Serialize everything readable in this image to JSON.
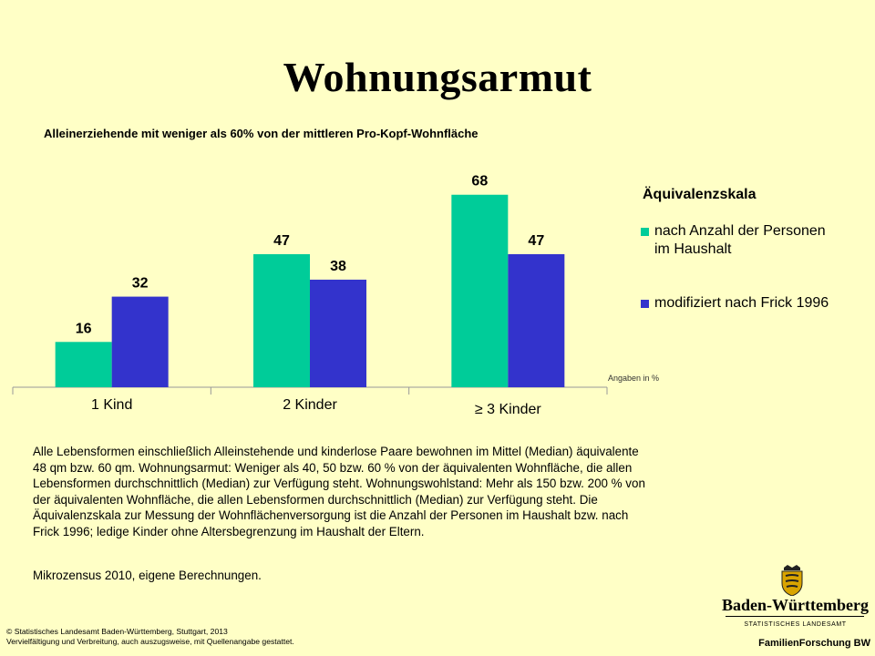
{
  "title": "Wohnungsarmut",
  "subtitle": "Alleinerziehende mit weniger als 60% von der mittleren Pro-Kopf-Wohnfläche",
  "chart_data": {
    "type": "bar",
    "categories": [
      "1 Kind",
      "2 Kinder",
      "≥ 3 Kinder"
    ],
    "series": [
      {
        "name": "nach Anzahl der Personen im Haushalt",
        "values": [
          16,
          47,
          68
        ],
        "color": "#00cc99"
      },
      {
        "name": "modifiziert nach Frick 1996",
        "values": [
          32,
          38,
          47
        ],
        "color": "#3333cc"
      }
    ],
    "ylim": [
      0,
      75
    ],
    "grid": false,
    "legend_position": "right",
    "legend_title": "Äquivalenzskala",
    "unit_note": "Angaben in %"
  },
  "legend": {
    "title": "Äquivalenzskala",
    "item1_line1": "nach Anzahl der Personen",
    "item1_line2": "im Haushalt",
    "item2": "modifiziert nach Frick 1996"
  },
  "unit_note": "Angaben in %",
  "body_text_lines": [
    "Alle Lebensformen einschließlich Alleinstehende und kinderlose Paare bewohnen im Mittel (Median) äquivalente",
    "48 qm bzw. 60 qm. Wohnungsarmut: Weniger als 40, 50 bzw. 60 % von der äquivalenten Wohnfläche, die allen",
    "Lebensformen durchschnittlich (Median) zur Verfügung steht. Wohnungswohlstand: Mehr als 150 bzw. 200 % von",
    "der äquivalenten Wohnfläche, die allen Lebensformen durchschnittlich (Median) zur Verfügung steht. Die",
    "Äquivalenzskala zur Messung der Wohnflächenversorgung ist die Anzahl der Personen im Haushalt bzw. nach",
    "Frick 1996; ledige Kinder ohne Altersbegrenzung im Haushalt der Eltern."
  ],
  "source": "Mikrozensus 2010, eigene Berechnungen.",
  "copyright_line1": "© Statistisches Landesamt Baden-Württemberg, Stuttgart, 2013",
  "copyright_line2": "Vervielfältigung und Verbreitung, auch auszugsweise, mit Quellenangabe gestattet.",
  "logo": {
    "state_name": "Baden-Württemberg",
    "office": "STATISTISCHES LANDESAMT",
    "department": "FamilienForschung BW"
  }
}
